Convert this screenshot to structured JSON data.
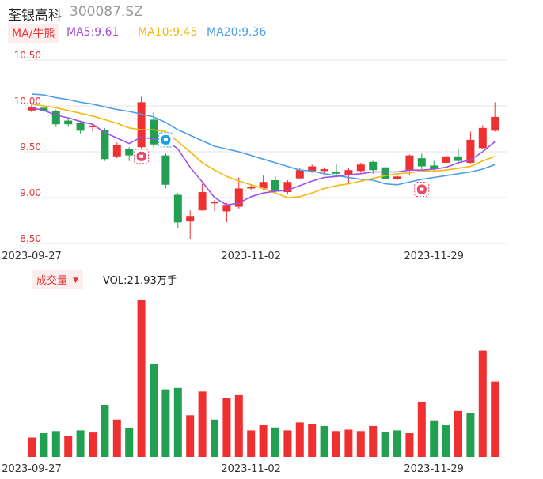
{
  "header": {
    "stock_name": "荃银高科",
    "stock_code": "300087.SZ",
    "ma_selector": "MA/牛熊",
    "ma5": "MA5:9.61",
    "ma10": "MA10:9.45",
    "ma20": "MA20:9.36"
  },
  "volume_header": {
    "selector": "成交量",
    "vol_text": "VOL:21.93万手"
  },
  "colors": {
    "up": "#f03030",
    "down": "#22a052",
    "ma5": "#a24ee8",
    "ma10": "#f5b80f",
    "ma20": "#4d9de8"
  },
  "chart_data": [
    {
      "type": "candlestick",
      "y_ticks": [
        "10.50",
        "10.00",
        "9.50",
        "9.00",
        "8.50"
      ],
      "ylim": [
        8.5,
        10.5
      ],
      "x_ticks": [
        "2023-09-27",
        "2023-11-02",
        "2023-11-29"
      ],
      "x_tick_index": [
        0,
        18,
        33
      ],
      "candles": [
        {
          "o": 9.95,
          "c": 9.99,
          "h": 10.02,
          "l": 9.93
        },
        {
          "o": 9.98,
          "c": 9.94,
          "h": 10.0,
          "l": 9.92
        },
        {
          "o": 9.94,
          "c": 9.8,
          "h": 9.96,
          "l": 9.77
        },
        {
          "o": 9.84,
          "c": 9.8,
          "h": 9.86,
          "l": 9.77
        },
        {
          "o": 9.82,
          "c": 9.73,
          "h": 9.84,
          "l": 9.7
        },
        {
          "o": 9.77,
          "c": 9.78,
          "h": 9.81,
          "l": 9.72
        },
        {
          "o": 9.74,
          "c": 9.42,
          "h": 9.76,
          "l": 9.4
        },
        {
          "o": 9.45,
          "c": 9.57,
          "h": 9.6,
          "l": 9.43
        },
        {
          "o": 9.53,
          "c": 9.46,
          "h": 9.55,
          "l": 9.4
        },
        {
          "o": 9.55,
          "c": 10.04,
          "h": 10.1,
          "l": 9.53
        },
        {
          "o": 9.85,
          "c": 9.58,
          "h": 9.93,
          "l": 9.55
        },
        {
          "o": 9.46,
          "c": 9.14,
          "h": 9.48,
          "l": 9.1
        },
        {
          "o": 9.03,
          "c": 8.73,
          "h": 9.05,
          "l": 8.67
        },
        {
          "o": 8.74,
          "c": 8.8,
          "h": 8.86,
          "l": 8.55
        },
        {
          "o": 8.86,
          "c": 9.06,
          "h": 9.15,
          "l": 8.86
        },
        {
          "o": 8.95,
          "c": 8.95,
          "h": 8.97,
          "l": 8.85
        },
        {
          "o": 8.85,
          "c": 8.92,
          "h": 8.94,
          "l": 8.73
        },
        {
          "o": 8.9,
          "c": 9.1,
          "h": 9.22,
          "l": 8.88
        },
        {
          "o": 9.1,
          "c": 9.12,
          "h": 9.14,
          "l": 9.08
        },
        {
          "o": 9.1,
          "c": 9.17,
          "h": 9.24,
          "l": 9.08
        },
        {
          "o": 9.19,
          "c": 9.07,
          "h": 9.23,
          "l": 9.05
        },
        {
          "o": 9.06,
          "c": 9.17,
          "h": 9.19,
          "l": 9.04
        },
        {
          "o": 9.21,
          "c": 9.3,
          "h": 9.32,
          "l": 9.2
        },
        {
          "o": 9.29,
          "c": 9.34,
          "h": 9.36,
          "l": 9.27
        },
        {
          "o": 9.29,
          "c": 9.31,
          "h": 9.33,
          "l": 9.26
        },
        {
          "o": 9.28,
          "c": 9.26,
          "h": 9.37,
          "l": 9.23
        },
        {
          "o": 9.25,
          "c": 9.3,
          "h": 9.32,
          "l": 9.15
        },
        {
          "o": 9.29,
          "c": 9.36,
          "h": 9.38,
          "l": 9.27
        },
        {
          "o": 9.39,
          "c": 9.3,
          "h": 9.4,
          "l": 9.26
        },
        {
          "o": 9.33,
          "c": 9.2,
          "h": 9.35,
          "l": 9.18
        },
        {
          "o": 9.2,
          "c": 9.23,
          "h": 9.24,
          "l": 9.19
        },
        {
          "o": 9.3,
          "c": 9.46,
          "h": 9.47,
          "l": 9.24
        },
        {
          "o": 9.43,
          "c": 9.34,
          "h": 9.48,
          "l": 9.31
        },
        {
          "o": 9.35,
          "c": 9.31,
          "h": 9.4,
          "l": 9.29
        },
        {
          "o": 9.38,
          "c": 9.45,
          "h": 9.56,
          "l": 9.35
        },
        {
          "o": 9.45,
          "c": 9.4,
          "h": 9.53,
          "l": 9.37
        },
        {
          "o": 9.38,
          "c": 9.63,
          "h": 9.72,
          "l": 9.37
        },
        {
          "o": 9.54,
          "c": 9.76,
          "h": 9.79,
          "l": 9.53
        },
        {
          "o": 9.73,
          "c": 9.88,
          "h": 10.04,
          "l": 9.72
        }
      ],
      "ma5": [
        9.98,
        9.95,
        9.9,
        9.87,
        9.83,
        9.8,
        9.71,
        9.65,
        9.59,
        9.66,
        9.64,
        9.63,
        9.53,
        9.33,
        9.17,
        9.0,
        8.92,
        8.94,
        9.01,
        9.05,
        9.07,
        9.08,
        9.13,
        9.18,
        9.22,
        9.23,
        9.25,
        9.26,
        9.28,
        9.28,
        9.28,
        9.3,
        9.3,
        9.31,
        9.33,
        9.38,
        9.41,
        9.5,
        9.61
      ],
      "ma10": [
        10.02,
        10.0,
        9.98,
        9.95,
        9.92,
        9.89,
        9.85,
        9.81,
        9.76,
        9.74,
        9.74,
        9.72,
        9.61,
        9.5,
        9.38,
        9.3,
        9.23,
        9.18,
        9.14,
        9.1,
        9.05,
        9.0,
        9.01,
        9.05,
        9.1,
        9.13,
        9.15,
        9.18,
        9.21,
        9.24,
        9.26,
        9.27,
        9.29,
        9.29,
        9.3,
        9.32,
        9.34,
        9.4,
        9.45
      ],
      "ma20": [
        10.13,
        10.12,
        10.09,
        10.07,
        10.04,
        10.02,
        9.99,
        9.96,
        9.94,
        9.91,
        9.88,
        9.82,
        9.74,
        9.68,
        9.62,
        9.56,
        9.53,
        9.5,
        9.46,
        9.42,
        9.38,
        9.34,
        9.3,
        9.29,
        9.26,
        9.24,
        9.22,
        9.2,
        9.19,
        9.15,
        9.14,
        9.17,
        9.2,
        9.22,
        9.24,
        9.26,
        9.28,
        9.31,
        9.36
      ],
      "markers": [
        {
          "index": 9,
          "kind": "bull",
          "at": 9.45
        },
        {
          "index": 11,
          "kind": "bear",
          "at": 9.63
        },
        {
          "index": 32,
          "kind": "bull",
          "at": 9.09
        }
      ]
    },
    {
      "type": "bar",
      "name": "成交量",
      "x_ticks": [
        "2023-09-27",
        "2023-11-02",
        "2023-11-29"
      ],
      "ylim": [
        0,
        21.8
      ],
      "values": [
        2.7,
        3.3,
        3.6,
        2.9,
        3.7,
        3.4,
        7.2,
        5.2,
        4.0,
        21.8,
        13.0,
        9.4,
        9.6,
        5.8,
        9.1,
        5.2,
        8.2,
        8.6,
        3.7,
        4.4,
        4.1,
        3.7,
        4.8,
        4.6,
        4.3,
        3.6,
        3.8,
        3.6,
        4.3,
        3.5,
        3.7,
        3.3,
        7.7,
        5.1,
        4.4,
        6.4,
        6.1,
        14.8,
        10.5
      ],
      "up": [
        true,
        false,
        false,
        true,
        false,
        true,
        false,
        true,
        false,
        true,
        false,
        false,
        false,
        true,
        true,
        false,
        true,
        true,
        true,
        true,
        false,
        true,
        true,
        true,
        false,
        true,
        true,
        true,
        true,
        false,
        false,
        true,
        true,
        false,
        false,
        true,
        false,
        true,
        true
      ]
    }
  ]
}
